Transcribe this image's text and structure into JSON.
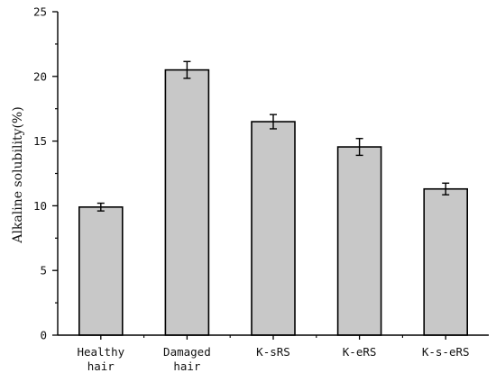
{
  "chart_data": {
    "type": "bar",
    "categories": [
      [
        "Healthy",
        "hair"
      ],
      [
        "Damaged",
        "hair"
      ],
      [
        "K-sRS"
      ],
      [
        "K-eRS"
      ],
      [
        "K-s-eRS"
      ]
    ],
    "values": [
      9.9,
      20.5,
      16.5,
      14.55,
      11.3
    ],
    "errors": [
      0.3,
      0.65,
      0.55,
      0.65,
      0.45
    ],
    "ylabel": "Alkaline solubility(%)",
    "xlabel": "",
    "ylim": [
      0,
      25
    ],
    "yticks": [
      0,
      5,
      10,
      15,
      20,
      25
    ],
    "bar_color": "#c8c8c8",
    "edge_color": "#000000",
    "grid": false
  }
}
